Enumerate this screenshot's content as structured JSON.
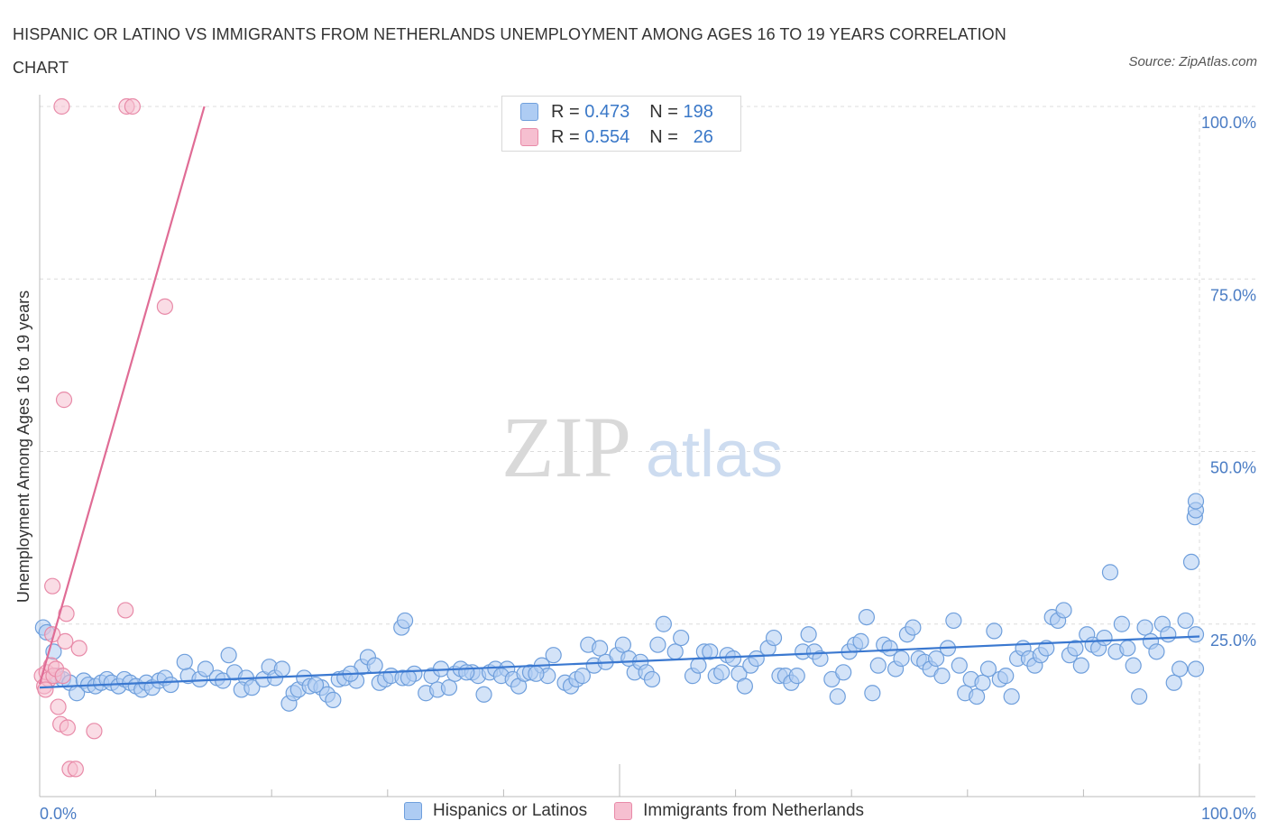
{
  "title": "HISPANIC OR LATINO VS IMMIGRANTS FROM NETHERLANDS UNEMPLOYMENT AMONG AGES 16 TO 19 YEARS CORRELATION CHART",
  "source": "Source: ZipAtlas.com",
  "watermark": {
    "zip": "ZIP",
    "atlas": "atlas"
  },
  "legend": {
    "rows": [
      {
        "r_label": "R =",
        "r_value": "0.473",
        "n_label": "N =",
        "n_value": "198"
      },
      {
        "r_label": "R =",
        "r_value": "0.554",
        "n_label": "N =",
        "n_value": "26"
      }
    ]
  },
  "colors": {
    "blue_fill": "#aeccf3",
    "blue_stroke": "#6f9fdc",
    "blue_line": "#3a78d0",
    "pink_fill": "#f6bfd0",
    "pink_stroke": "#e88aa8",
    "pink_line": "#e06c95",
    "tick_label": "#4a7cc4",
    "grid": "#dcdcdc"
  },
  "chart_data": {
    "type": "scatter",
    "title": "HISPANIC OR LATINO VS IMMIGRANTS FROM NETHERLANDS UNEMPLOYMENT AMONG AGES 16 TO 19 YEARS CORRELATION CHART",
    "xlabel": "",
    "ylabel": "Unemployment Among Ages 16 to 19 years",
    "xlim": [
      0,
      100
    ],
    "ylim": [
      0,
      100
    ],
    "x_tick_labels": [
      "0.0%",
      "100.0%"
    ],
    "y_tick_labels": [
      "25.0%",
      "50.0%",
      "75.0%",
      "100.0%"
    ],
    "y_ticks": [
      25,
      50,
      75,
      100
    ],
    "grid": true,
    "legend_position": "top-center",
    "series": [
      {
        "name": "Hispanics or Latinos",
        "color": "#aeccf3",
        "r": 0.473,
        "n": 198,
        "trend": {
          "x": [
            0,
            100
          ],
          "y": [
            15.8,
            23.2
          ]
        },
        "points": [
          [
            0.3,
            24.5
          ],
          [
            0.6,
            23.8
          ],
          [
            1.2,
            21
          ],
          [
            1.5,
            17.5
          ],
          [
            2,
            17
          ],
          [
            2.6,
            16.5
          ],
          [
            3.2,
            15
          ],
          [
            3.8,
            16.8
          ],
          [
            4.2,
            16.2
          ],
          [
            4.8,
            16
          ],
          [
            5.3,
            16.5
          ],
          [
            5.8,
            17
          ],
          [
            6.2,
            16.5
          ],
          [
            6.8,
            16
          ],
          [
            7.3,
            17
          ],
          [
            7.8,
            16.5
          ],
          [
            8.3,
            16
          ],
          [
            8.8,
            15.5
          ],
          [
            9.2,
            16.5
          ],
          [
            9.7,
            15.8
          ],
          [
            10.3,
            16.8
          ],
          [
            10.8,
            17.2
          ],
          [
            11.3,
            16.2
          ],
          [
            12.8,
            17.5
          ],
          [
            12.5,
            19.5
          ],
          [
            13.8,
            17
          ],
          [
            14.3,
            18.5
          ],
          [
            15.3,
            17.2
          ],
          [
            15.8,
            16.8
          ],
          [
            16.3,
            20.5
          ],
          [
            16.8,
            18
          ],
          [
            17.8,
            17.2
          ],
          [
            17.4,
            15.5
          ],
          [
            18.3,
            15.8
          ],
          [
            19.3,
            17
          ],
          [
            19.8,
            18.8
          ],
          [
            20.3,
            17.2
          ],
          [
            20.9,
            18.5
          ],
          [
            21.5,
            13.5
          ],
          [
            21.9,
            15
          ],
          [
            22.3,
            15.5
          ],
          [
            22.8,
            17.2
          ],
          [
            23.3,
            16
          ],
          [
            24.3,
            15.8
          ],
          [
            24.8,
            14.8
          ],
          [
            23.8,
            16.2
          ],
          [
            25.3,
            14
          ],
          [
            25.8,
            17
          ],
          [
            26.3,
            17.2
          ],
          [
            27.3,
            16.8
          ],
          [
            27.8,
            18.8
          ],
          [
            26.8,
            17.8
          ],
          [
            28.3,
            20.2
          ],
          [
            28.9,
            19
          ],
          [
            29.3,
            16.5
          ],
          [
            29.8,
            17
          ],
          [
            30.3,
            17.5
          ],
          [
            31.3,
            17.2
          ],
          [
            32.3,
            17.8
          ],
          [
            31.8,
            17.2
          ],
          [
            31.2,
            24.5
          ],
          [
            31.5,
            25.5
          ],
          [
            33.3,
            15
          ],
          [
            33.8,
            17.5
          ],
          [
            34.3,
            15.5
          ],
          [
            34.6,
            18.5
          ],
          [
            35.3,
            15.8
          ],
          [
            35.8,
            17.8
          ],
          [
            36.3,
            18.5
          ],
          [
            37.3,
            18
          ],
          [
            37.8,
            17.5
          ],
          [
            36.8,
            18
          ],
          [
            38.3,
            14.8
          ],
          [
            38.8,
            18
          ],
          [
            39.3,
            18.5
          ],
          [
            40.3,
            18.5
          ],
          [
            39.8,
            17.5
          ],
          [
            40.8,
            17
          ],
          [
            41.3,
            16
          ],
          [
            41.8,
            17.8
          ],
          [
            42.3,
            18
          ],
          [
            43.3,
            19
          ],
          [
            43.8,
            17.5
          ],
          [
            44.3,
            20.5
          ],
          [
            42.8,
            17.8
          ],
          [
            45.3,
            16.5
          ],
          [
            45.8,
            16
          ],
          [
            46.3,
            17
          ],
          [
            46.8,
            17.5
          ],
          [
            47.3,
            22
          ],
          [
            47.8,
            19
          ],
          [
            48.3,
            21.5
          ],
          [
            48.8,
            19.5
          ],
          [
            49.8,
            20.5
          ],
          [
            50.3,
            22
          ],
          [
            50.8,
            20
          ],
          [
            51.3,
            18
          ],
          [
            51.8,
            19.5
          ],
          [
            52.3,
            18
          ],
          [
            52.8,
            17
          ],
          [
            53.3,
            22
          ],
          [
            53.8,
            25
          ],
          [
            54.8,
            21
          ],
          [
            55.3,
            23
          ],
          [
            56.3,
            17.5
          ],
          [
            56.8,
            19
          ],
          [
            57.3,
            21
          ],
          [
            57.8,
            21
          ],
          [
            58.3,
            17.5
          ],
          [
            58.8,
            18
          ],
          [
            59.3,
            20.5
          ],
          [
            59.8,
            20
          ],
          [
            60.3,
            17.8
          ],
          [
            60.8,
            16
          ],
          [
            61.3,
            19
          ],
          [
            61.8,
            20
          ],
          [
            62.8,
            21.5
          ],
          [
            63.3,
            23
          ],
          [
            63.8,
            17.5
          ],
          [
            64.3,
            17.5
          ],
          [
            64.8,
            16.5
          ],
          [
            65.3,
            17.5
          ],
          [
            65.8,
            21
          ],
          [
            66.3,
            23.5
          ],
          [
            66.8,
            21
          ],
          [
            67.3,
            20
          ],
          [
            68.3,
            17
          ],
          [
            68.8,
            14.5
          ],
          [
            69.3,
            18
          ],
          [
            69.8,
            21
          ],
          [
            70.3,
            22
          ],
          [
            70.8,
            22.5
          ],
          [
            71.3,
            26
          ],
          [
            71.8,
            15
          ],
          [
            72.3,
            19
          ],
          [
            72.8,
            22
          ],
          [
            73.3,
            21.5
          ],
          [
            73.8,
            18.5
          ],
          [
            74.3,
            20
          ],
          [
            74.8,
            23.5
          ],
          [
            75.3,
            24.5
          ],
          [
            75.8,
            20
          ],
          [
            76.3,
            19.5
          ],
          [
            76.8,
            18.5
          ],
          [
            77.3,
            20
          ],
          [
            77.8,
            17.5
          ],
          [
            78.3,
            21.5
          ],
          [
            78.8,
            25.5
          ],
          [
            79.3,
            19
          ],
          [
            79.8,
            15
          ],
          [
            80.3,
            17
          ],
          [
            80.8,
            14.5
          ],
          [
            81.3,
            16.5
          ],
          [
            81.8,
            18.5
          ],
          [
            82.3,
            24
          ],
          [
            82.8,
            17
          ],
          [
            83.3,
            17.5
          ],
          [
            83.8,
            14.5
          ],
          [
            84.3,
            20
          ],
          [
            84.8,
            21.5
          ],
          [
            85.3,
            20
          ],
          [
            85.8,
            19
          ],
          [
            86.3,
            20.5
          ],
          [
            86.8,
            21.5
          ],
          [
            87.3,
            26
          ],
          [
            87.8,
            25.5
          ],
          [
            88.3,
            27
          ],
          [
            88.8,
            20.5
          ],
          [
            89.3,
            21.5
          ],
          [
            89.8,
            19
          ],
          [
            90.3,
            23.5
          ],
          [
            90.8,
            22
          ],
          [
            91.3,
            21.5
          ],
          [
            91.8,
            23
          ],
          [
            92.3,
            32.5
          ],
          [
            92.8,
            21
          ],
          [
            93.3,
            25
          ],
          [
            93.8,
            21.5
          ],
          [
            94.3,
            19
          ],
          [
            94.8,
            14.5
          ],
          [
            95.3,
            24.5
          ],
          [
            95.8,
            22.5
          ],
          [
            96.3,
            21
          ],
          [
            96.8,
            25
          ],
          [
            97.3,
            23.5
          ],
          [
            97.8,
            16.5
          ],
          [
            98.3,
            18.5
          ],
          [
            98.8,
            25.5
          ],
          [
            99.3,
            34
          ],
          [
            99.6,
            40.5
          ],
          [
            99.9,
            41.5
          ],
          [
            100.3,
            42.8
          ],
          [
            100.6,
            18.5
          ],
          [
            101,
            23.5
          ]
        ]
      },
      {
        "name": "Immigrants from Netherlands",
        "color": "#f6bfd0",
        "r": 0.554,
        "n": 26,
        "trend": {
          "x": [
            0,
            14.2
          ],
          "y": [
            16.3,
            100
          ]
        },
        "points": [
          [
            0.2,
            17.5
          ],
          [
            0.4,
            16
          ],
          [
            0.6,
            18
          ],
          [
            0.8,
            17
          ],
          [
            1,
            19
          ],
          [
            1.1,
            23.5
          ],
          [
            1.2,
            17.5
          ],
          [
            1.4,
            18.5
          ],
          [
            1.6,
            13
          ],
          [
            1.8,
            10.5
          ],
          [
            2.0,
            17.5
          ],
          [
            2.2,
            22.5
          ],
          [
            2.3,
            26.5
          ],
          [
            2.4,
            10
          ],
          [
            1.1,
            30.5
          ],
          [
            2.1,
            57.5
          ],
          [
            2.6,
            4
          ],
          [
            3.1,
            4
          ],
          [
            3.4,
            21.5
          ],
          [
            4.7,
            9.5
          ],
          [
            7.5,
            100
          ],
          [
            8.0,
            100
          ],
          [
            1.9,
            100
          ],
          [
            7.4,
            27
          ],
          [
            10.8,
            71
          ],
          [
            0.5,
            15.5
          ]
        ]
      }
    ]
  }
}
